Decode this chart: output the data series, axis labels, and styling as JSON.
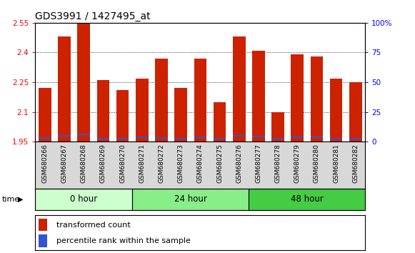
{
  "title": "GDS3991 / 1427495_at",
  "samples": [
    "GSM680266",
    "GSM680267",
    "GSM680268",
    "GSM680269",
    "GSM680270",
    "GSM680271",
    "GSM680272",
    "GSM680273",
    "GSM680274",
    "GSM680275",
    "GSM680276",
    "GSM680277",
    "GSM680278",
    "GSM680279",
    "GSM680280",
    "GSM680281",
    "GSM680282"
  ],
  "red_values": [
    2.22,
    2.48,
    2.55,
    2.26,
    2.21,
    2.27,
    2.37,
    2.22,
    2.37,
    2.15,
    2.48,
    2.41,
    2.1,
    2.39,
    2.38,
    2.27,
    2.25
  ],
  "blue_positions": [
    1.965,
    1.975,
    1.985,
    1.962,
    1.962,
    1.968,
    1.965,
    1.963,
    1.97,
    1.962,
    1.975,
    1.972,
    1.962,
    1.97,
    1.968,
    1.963,
    1.963
  ],
  "blue_heights": [
    0.007,
    0.007,
    0.007,
    0.007,
    0.007,
    0.007,
    0.007,
    0.007,
    0.007,
    0.007,
    0.007,
    0.007,
    0.007,
    0.007,
    0.007,
    0.007,
    0.007
  ],
  "groups": [
    {
      "label": "0 hour",
      "start": 0,
      "end": 5,
      "color": "#ccffcc"
    },
    {
      "label": "24 hour",
      "start": 5,
      "end": 11,
      "color": "#88ee88"
    },
    {
      "label": "48 hour",
      "start": 11,
      "end": 17,
      "color": "#44cc44"
    }
  ],
  "ymin": 1.95,
  "ymax": 2.55,
  "yticks": [
    1.95,
    2.1,
    2.25,
    2.4,
    2.55
  ],
  "ytick_labels": [
    "1.95",
    "2.1",
    "2.25",
    "2.4",
    "2.55"
  ],
  "y2ticks": [
    0,
    25,
    50,
    75,
    100
  ],
  "y2tick_labels": [
    "0",
    "25",
    "50",
    "75",
    "100%"
  ],
  "bar_color": "#cc2200",
  "blue_color": "#3355cc",
  "bar_width": 0.65,
  "legend_items": [
    "transformed count",
    "percentile rank within the sample"
  ],
  "group_label_colors": [
    "#ccffcc",
    "#88ee88",
    "#44cc44"
  ]
}
